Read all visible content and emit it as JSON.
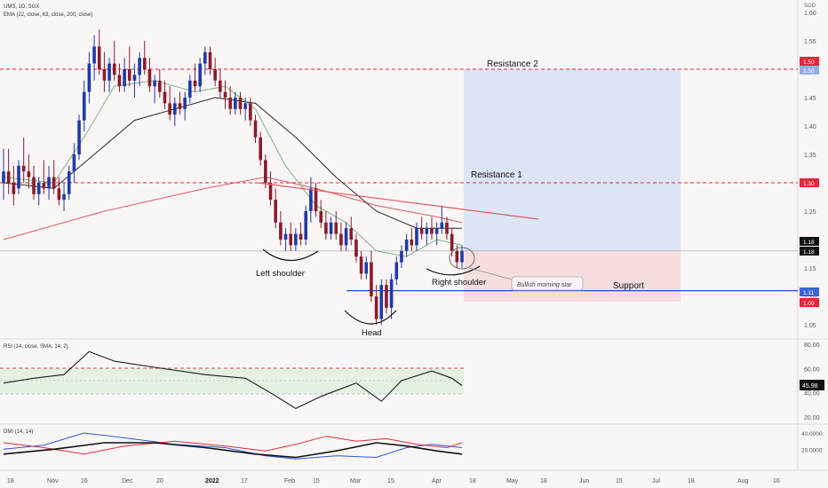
{
  "header": {
    "symbol_line": "UMS, 1D, SGX",
    "ema_line": "EMA (22, close, 63, close, 200, close)",
    "currency": "SGD"
  },
  "price_axis": {
    "ticks": [
      "1.60",
      "1.55",
      "1.50",
      "1.45",
      "1.40",
      "1.35",
      "1.30",
      "1.25",
      "1.20",
      "1.15",
      "1.10",
      "1.05"
    ],
    "badges": [
      {
        "label": "1.50",
        "type": "red"
      },
      {
        "label": "1.50",
        "type": "blue"
      },
      {
        "label": "1.30",
        "type": "red"
      },
      {
        "label": "1.18",
        "type": "dark"
      },
      {
        "label": "1.18",
        "type": "dark"
      },
      {
        "label": "1.11",
        "type": "blue"
      },
      {
        "label": "1.09",
        "type": "red"
      }
    ]
  },
  "annotations": {
    "resistance2": "Resistance 2",
    "resistance1": "Resistance 1",
    "left_shoulder": "Left shoulder",
    "head": "Head",
    "right_shoulder": "Right shoulder",
    "morning_star": "Bullish morning star",
    "support": "Support"
  },
  "rsi_pane": {
    "title": "RSI (14, close, SMA, 14, 2)",
    "ticks": [
      "80.00",
      "60.00",
      "40.00",
      "20.00"
    ],
    "current": "45.98"
  },
  "dmi_pane": {
    "title": "DMI (14, 14)",
    "ticks": [
      "40.0000",
      "20.0000"
    ]
  },
  "time_axis": {
    "labels": [
      "18",
      "Nov",
      "16",
      "Dec",
      "20",
      "2022",
      "17",
      "Feb",
      "15",
      "Mar",
      "15",
      "Apr",
      "18",
      "May",
      "18",
      "Jun",
      "15",
      "Jul",
      "18",
      "Aug",
      "16"
    ]
  },
  "colors": {
    "up": "#1e3aa8",
    "down": "#8a1c2b",
    "ema22": "#7cb387",
    "ema63": "#2a2a2a",
    "ema200": "#e05a64",
    "target_zone": "#dbe5f5",
    "stop_zone": "#f6dede",
    "support_line": "#2452c8",
    "resistance_line": "#e0283a"
  },
  "chart_data": {
    "type": "candlestick",
    "y_range": [
      1.02,
      1.62
    ],
    "candles": [
      [
        1.3,
        1.36,
        1.27,
        1.32
      ],
      [
        1.32,
        1.36,
        1.28,
        1.3
      ],
      [
        1.3,
        1.33,
        1.26,
        1.28
      ],
      [
        1.29,
        1.34,
        1.28,
        1.33
      ],
      [
        1.33,
        1.38,
        1.3,
        1.32
      ],
      [
        1.32,
        1.35,
        1.29,
        1.31
      ],
      [
        1.31,
        1.33,
        1.27,
        1.28
      ],
      [
        1.28,
        1.31,
        1.26,
        1.3
      ],
      [
        1.3,
        1.34,
        1.28,
        1.29
      ],
      [
        1.29,
        1.33,
        1.27,
        1.31
      ],
      [
        1.31,
        1.34,
        1.28,
        1.29
      ],
      [
        1.29,
        1.31,
        1.26,
        1.27
      ],
      [
        1.27,
        1.3,
        1.25,
        1.28
      ],
      [
        1.28,
        1.33,
        1.27,
        1.32
      ],
      [
        1.32,
        1.37,
        1.3,
        1.35
      ],
      [
        1.35,
        1.42,
        1.34,
        1.41
      ],
      [
        1.41,
        1.48,
        1.39,
        1.46
      ],
      [
        1.46,
        1.53,
        1.44,
        1.51
      ],
      [
        1.51,
        1.56,
        1.48,
        1.54
      ],
      [
        1.54,
        1.57,
        1.49,
        1.5
      ],
      [
        1.5,
        1.53,
        1.46,
        1.48
      ],
      [
        1.48,
        1.52,
        1.46,
        1.51
      ],
      [
        1.51,
        1.55,
        1.48,
        1.49
      ],
      [
        1.49,
        1.51,
        1.46,
        1.47
      ],
      [
        1.47,
        1.52,
        1.46,
        1.5
      ],
      [
        1.5,
        1.54,
        1.47,
        1.48
      ],
      [
        1.48,
        1.51,
        1.45,
        1.49
      ],
      [
        1.49,
        1.53,
        1.47,
        1.52
      ],
      [
        1.52,
        1.55,
        1.49,
        1.5
      ],
      [
        1.5,
        1.52,
        1.46,
        1.47
      ],
      [
        1.47,
        1.49,
        1.44,
        1.48
      ],
      [
        1.48,
        1.5,
        1.45,
        1.46
      ],
      [
        1.46,
        1.48,
        1.43,
        1.44
      ],
      [
        1.44,
        1.47,
        1.41,
        1.42
      ],
      [
        1.42,
        1.45,
        1.4,
        1.44
      ],
      [
        1.44,
        1.46,
        1.42,
        1.43
      ],
      [
        1.43,
        1.46,
        1.41,
        1.45
      ],
      [
        1.45,
        1.49,
        1.44,
        1.48
      ],
      [
        1.48,
        1.51,
        1.46,
        1.47
      ],
      [
        1.47,
        1.52,
        1.46,
        1.51
      ],
      [
        1.51,
        1.54,
        1.49,
        1.53
      ],
      [
        1.53,
        1.54,
        1.49,
        1.5
      ],
      [
        1.5,
        1.52,
        1.47,
        1.48
      ],
      [
        1.48,
        1.5,
        1.45,
        1.46
      ],
      [
        1.46,
        1.48,
        1.43,
        1.45
      ],
      [
        1.45,
        1.47,
        1.42,
        1.43
      ],
      [
        1.43,
        1.46,
        1.42,
        1.45
      ],
      [
        1.45,
        1.46,
        1.42,
        1.43
      ],
      [
        1.43,
        1.45,
        1.41,
        1.44
      ],
      [
        1.44,
        1.45,
        1.4,
        1.41
      ],
      [
        1.41,
        1.42,
        1.37,
        1.38
      ],
      [
        1.38,
        1.39,
        1.33,
        1.34
      ],
      [
        1.34,
        1.35,
        1.29,
        1.3
      ],
      [
        1.3,
        1.32,
        1.26,
        1.27
      ],
      [
        1.27,
        1.29,
        1.22,
        1.23
      ],
      [
        1.23,
        1.25,
        1.19,
        1.2
      ],
      [
        1.2,
        1.22,
        1.18,
        1.21
      ],
      [
        1.21,
        1.23,
        1.18,
        1.19
      ],
      [
        1.19,
        1.22,
        1.18,
        1.21
      ],
      [
        1.21,
        1.23,
        1.19,
        1.2
      ],
      [
        1.2,
        1.26,
        1.19,
        1.25
      ],
      [
        1.25,
        1.31,
        1.23,
        1.29
      ],
      [
        1.29,
        1.3,
        1.24,
        1.25
      ],
      [
        1.25,
        1.27,
        1.22,
        1.23
      ],
      [
        1.23,
        1.25,
        1.2,
        1.21
      ],
      [
        1.21,
        1.24,
        1.2,
        1.23
      ],
      [
        1.23,
        1.25,
        1.2,
        1.21
      ],
      [
        1.21,
        1.23,
        1.18,
        1.19
      ],
      [
        1.19,
        1.23,
        1.18,
        1.22
      ],
      [
        1.22,
        1.24,
        1.19,
        1.2
      ],
      [
        1.2,
        1.21,
        1.16,
        1.17
      ],
      [
        1.17,
        1.18,
        1.13,
        1.14
      ],
      [
        1.14,
        1.17,
        1.13,
        1.16
      ],
      [
        1.16,
        1.18,
        1.09,
        1.1
      ],
      [
        1.1,
        1.12,
        1.05,
        1.06
      ],
      [
        1.06,
        1.13,
        1.05,
        1.12
      ],
      [
        1.12,
        1.13,
        1.07,
        1.08
      ],
      [
        1.08,
        1.14,
        1.06,
        1.13
      ],
      [
        1.13,
        1.17,
        1.12,
        1.16
      ],
      [
        1.16,
        1.19,
        1.15,
        1.18
      ],
      [
        1.18,
        1.21,
        1.17,
        1.2
      ],
      [
        1.2,
        1.22,
        1.18,
        1.19
      ],
      [
        1.19,
        1.23,
        1.18,
        1.22
      ],
      [
        1.22,
        1.24,
        1.2,
        1.21
      ],
      [
        1.21,
        1.23,
        1.19,
        1.22
      ],
      [
        1.22,
        1.24,
        1.2,
        1.21
      ],
      [
        1.21,
        1.23,
        1.19,
        1.22
      ],
      [
        1.22,
        1.26,
        1.21,
        1.23
      ],
      [
        1.23,
        1.24,
        1.2,
        1.21
      ],
      [
        1.21,
        1.22,
        1.17,
        1.18
      ],
      [
        1.18,
        1.19,
        1.15,
        1.16
      ],
      [
        1.16,
        1.19,
        1.15,
        1.18
      ]
    ],
    "ema22": [
      [
        0,
        1.31
      ],
      [
        10,
        1.3
      ],
      [
        16,
        1.38
      ],
      [
        22,
        1.47
      ],
      [
        30,
        1.48
      ],
      [
        38,
        1.46
      ],
      [
        44,
        1.47
      ],
      [
        50,
        1.43
      ],
      [
        56,
        1.33
      ],
      [
        62,
        1.26
      ],
      [
        68,
        1.23
      ],
      [
        74,
        1.18
      ],
      [
        80,
        1.17
      ],
      [
        86,
        1.2
      ],
      [
        91,
        1.19
      ]
    ],
    "ema63": [
      [
        0,
        1.3
      ],
      [
        10,
        1.29
      ],
      [
        18,
        1.35
      ],
      [
        26,
        1.41
      ],
      [
        34,
        1.43
      ],
      [
        42,
        1.45
      ],
      [
        50,
        1.44
      ],
      [
        58,
        1.38
      ],
      [
        66,
        1.31
      ],
      [
        74,
        1.25
      ],
      [
        82,
        1.22
      ],
      [
        91,
        1.22
      ]
    ],
    "ema200": [
      [
        0,
        1.2
      ],
      [
        20,
        1.25
      ],
      [
        40,
        1.29
      ],
      [
        52,
        1.31
      ],
      [
        62,
        1.29
      ],
      [
        74,
        1.26
      ],
      [
        86,
        1.24
      ],
      [
        91,
        1.23
      ]
    ],
    "rsi": [
      [
        0,
        48
      ],
      [
        6,
        52
      ],
      [
        12,
        55
      ],
      [
        17,
        74
      ],
      [
        22,
        66
      ],
      [
        30,
        61
      ],
      [
        40,
        55
      ],
      [
        48,
        52
      ],
      [
        53,
        40
      ],
      [
        58,
        27
      ],
      [
        63,
        37
      ],
      [
        70,
        48
      ],
      [
        75,
        33
      ],
      [
        79,
        50
      ],
      [
        85,
        58
      ],
      [
        89,
        52
      ],
      [
        91,
        46
      ]
    ],
    "rsi_current": 45.98,
    "dmi_plus": [
      [
        0,
        20
      ],
      [
        8,
        25
      ],
      [
        16,
        40
      ],
      [
        24,
        34
      ],
      [
        34,
        26
      ],
      [
        44,
        22
      ],
      [
        52,
        12
      ],
      [
        58,
        8
      ],
      [
        66,
        12
      ],
      [
        74,
        10
      ],
      [
        80,
        22
      ],
      [
        85,
        26
      ],
      [
        91,
        22
      ]
    ],
    "dmi_minus": [
      [
        0,
        28
      ],
      [
        8,
        22
      ],
      [
        16,
        14
      ],
      [
        24,
        24
      ],
      [
        34,
        30
      ],
      [
        44,
        24
      ],
      [
        52,
        18
      ],
      [
        58,
        26
      ],
      [
        64,
        36
      ],
      [
        70,
        30
      ],
      [
        76,
        33
      ],
      [
        82,
        26
      ],
      [
        88,
        22
      ],
      [
        91,
        28
      ]
    ],
    "adx": [
      [
        0,
        14
      ],
      [
        10,
        20
      ],
      [
        20,
        28
      ],
      [
        30,
        28
      ],
      [
        40,
        22
      ],
      [
        50,
        14
      ],
      [
        58,
        10
      ],
      [
        66,
        18
      ],
      [
        74,
        28
      ],
      [
        80,
        24
      ],
      [
        86,
        18
      ],
      [
        91,
        14
      ]
    ],
    "levels": {
      "resistance2": 1.5,
      "resistance1": 1.3,
      "support": 1.11,
      "current": 1.18,
      "stop": 1.09
    }
  }
}
